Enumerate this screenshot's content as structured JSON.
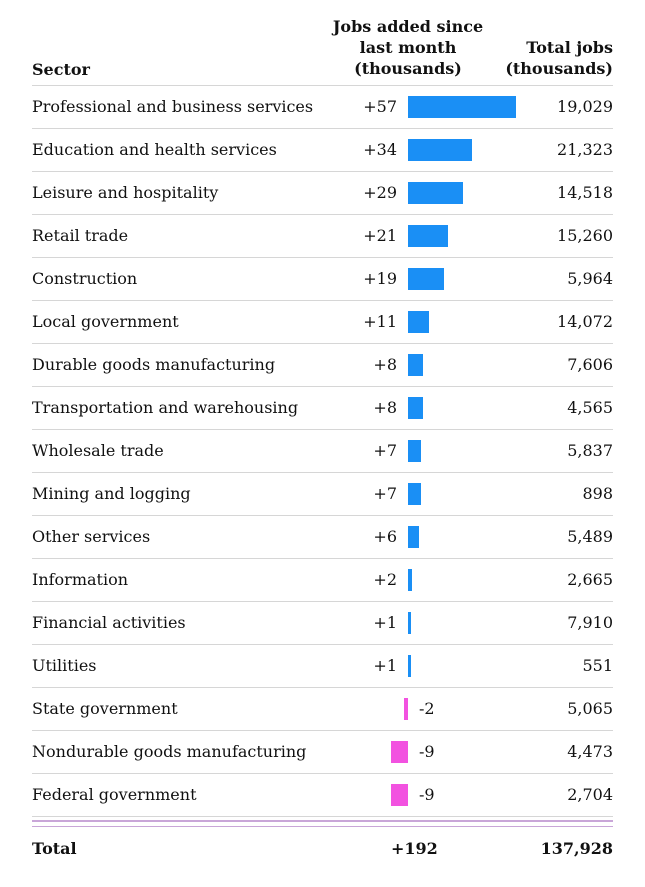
{
  "chart_data": {
    "type": "table",
    "headers": {
      "sector": "Sector",
      "jobs_added_lines": [
        "Jobs added since",
        "last month",
        "(thousands)"
      ],
      "total_jobs_lines": [
        "Total jobs",
        "(thousands)"
      ]
    },
    "rows": [
      {
        "sector": "Professional and business services",
        "change": 57,
        "change_label": "+57",
        "total": "19,029"
      },
      {
        "sector": "Education and health services",
        "change": 34,
        "change_label": "+34",
        "total": "21,323"
      },
      {
        "sector": "Leisure and hospitality",
        "change": 29,
        "change_label": "+29",
        "total": "14,518"
      },
      {
        "sector": "Retail trade",
        "change": 21,
        "change_label": "+21",
        "total": "15,260"
      },
      {
        "sector": "Construction",
        "change": 19,
        "change_label": "+19",
        "total": "5,964"
      },
      {
        "sector": "Local government",
        "change": 11,
        "change_label": "+11",
        "total": "14,072"
      },
      {
        "sector": "Durable goods manufacturing",
        "change": 8,
        "change_label": "+8",
        "total": "7,606"
      },
      {
        "sector": "Transportation and warehousing",
        "change": 8,
        "change_label": "+8",
        "total": "4,565"
      },
      {
        "sector": "Wholesale trade",
        "change": 7,
        "change_label": "+7",
        "total": "5,837"
      },
      {
        "sector": "Mining and logging",
        "change": 7,
        "change_label": "+7",
        "total": "898"
      },
      {
        "sector": "Other services",
        "change": 6,
        "change_label": "+6",
        "total": "5,489"
      },
      {
        "sector": "Information",
        "change": 2,
        "change_label": "+2",
        "total": "2,665"
      },
      {
        "sector": "Financial activities",
        "change": 1,
        "change_label": "+1",
        "total": "7,910"
      },
      {
        "sector": "Utilities",
        "change": 1,
        "change_label": "+1",
        "total": "551"
      },
      {
        "sector": "State government",
        "change": -2,
        "change_label": "-2",
        "total": "5,065"
      },
      {
        "sector": "Nondurable goods manufacturing",
        "change": -9,
        "change_label": "-9",
        "total": "4,473"
      },
      {
        "sector": "Federal government",
        "change": -9,
        "change_label": "-9",
        "total": "2,704"
      }
    ],
    "total": {
      "label": "Total",
      "change_label": "+192",
      "total": "137,928"
    },
    "colors": {
      "positive": "#1a8ff5",
      "negative": "#f252e0"
    }
  }
}
